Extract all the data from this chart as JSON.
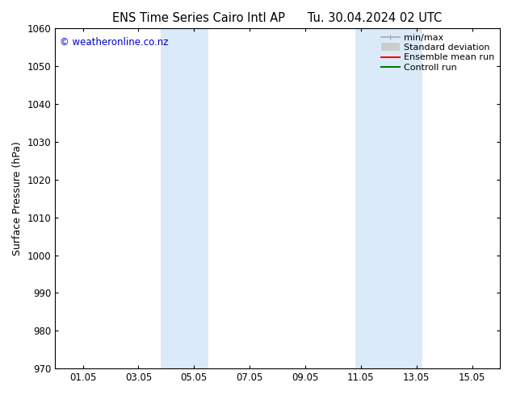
{
  "title_left": "ENS Time Series Cairo Intl AP",
  "title_right": "Tu. 30.04.2024 02 UTC",
  "ylabel": "Surface Pressure (hPa)",
  "ylim": [
    970,
    1060
  ],
  "yticks": [
    970,
    980,
    990,
    1000,
    1010,
    1020,
    1030,
    1040,
    1050,
    1060
  ],
  "xtick_labels": [
    "01.05",
    "03.05",
    "05.05",
    "07.05",
    "09.05",
    "11.05",
    "13.05",
    "15.05"
  ],
  "xtick_positions": [
    1,
    3,
    5,
    7,
    9,
    11,
    13,
    15
  ],
  "xlim": [
    0,
    16
  ],
  "shaded_bands": [
    {
      "xmin": 3.8,
      "xmax": 5.5,
      "color": "#daeaf8"
    },
    {
      "xmin": 10.8,
      "xmax": 13.2,
      "color": "#daeaf8"
    }
  ],
  "watermark": "© weatheronline.co.nz",
  "watermark_color": "#0000cc",
  "legend_items": [
    {
      "label": "min/max",
      "color": "#aaaaaa",
      "lw": 1.2,
      "type": "line_with_caps"
    },
    {
      "label": "Standard deviation",
      "color": "#cccccc",
      "lw": 7,
      "type": "thick_line"
    },
    {
      "label": "Ensemble mean run",
      "color": "#ff0000",
      "lw": 1.5,
      "type": "line"
    },
    {
      "label": "Controll run",
      "color": "#007700",
      "lw": 1.5,
      "type": "line"
    }
  ],
  "bg_color": "#ffffff",
  "plot_bg_color": "#ffffff",
  "title_fontsize": 10.5,
  "axis_label_fontsize": 9,
  "tick_fontsize": 8.5,
  "legend_fontsize": 8
}
